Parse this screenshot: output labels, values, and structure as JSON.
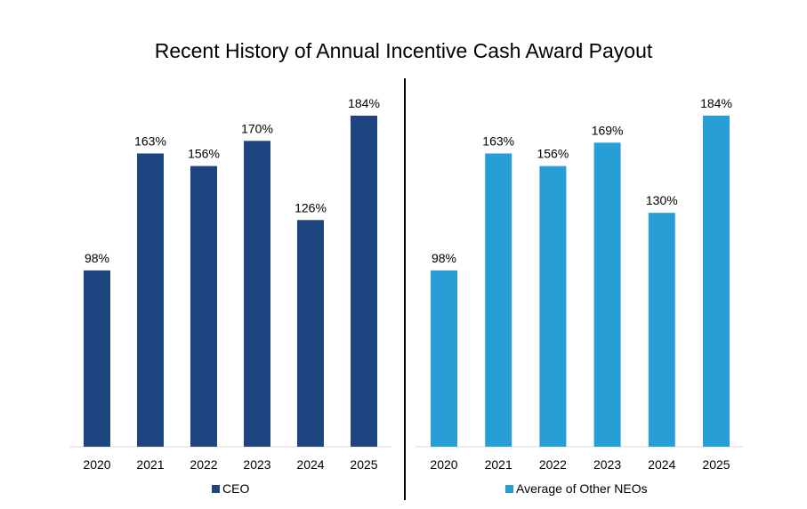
{
  "title": "Recent History of Annual Incentive Cash Award Payout",
  "chart_data": [
    {
      "type": "bar",
      "categories": [
        "2020",
        "2021",
        "2022",
        "2023",
        "2024",
        "2025"
      ],
      "series": [
        {
          "name": "CEO",
          "values": [
            98,
            163,
            156,
            170,
            126,
            184
          ],
          "labels": [
            "98%",
            "163%",
            "156%",
            "170%",
            "126%",
            "184%"
          ]
        }
      ],
      "color": "#1F4580",
      "ylim": [
        0,
        184
      ],
      "grid": false,
      "legend": "bottom"
    },
    {
      "type": "bar",
      "categories": [
        "2020",
        "2021",
        "2022",
        "2023",
        "2024",
        "2025"
      ],
      "series": [
        {
          "name": "Average of Other NEOs",
          "values": [
            98,
            163,
            156,
            169,
            130,
            184
          ],
          "labels": [
            "98%",
            "163%",
            "156%",
            "169%",
            "130%",
            "184%"
          ]
        }
      ],
      "color": "#279ED5",
      "ylim": [
        0,
        184
      ],
      "grid": false,
      "legend": "bottom"
    }
  ]
}
